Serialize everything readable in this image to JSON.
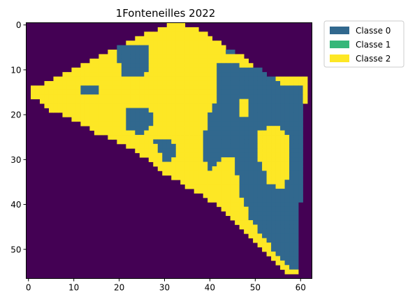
{
  "chart_data": {
    "type": "heatmap",
    "title": "1Fonteneilles 2022",
    "xlabel": "",
    "ylabel": "",
    "grid": false,
    "colorbar": false,
    "legend_position": "outside-top-right",
    "xlim": [
      -0.5,
      62.5
    ],
    "ylim": [
      56.5,
      -0.5
    ],
    "x_ticks": [
      0,
      10,
      20,
      30,
      40,
      50,
      60
    ],
    "y_ticks": [
      0,
      10,
      20,
      30,
      40,
      50
    ],
    "grid_size": {
      "cols": 63,
      "rows": 57
    },
    "background_color": "#440154",
    "legend": [
      {
        "label": "Classe 0",
        "color": "#31688e"
      },
      {
        "label": "Classe 1",
        "color": "#35b779"
      },
      {
        "label": "Classe 2",
        "color": "#fde725"
      }
    ],
    "field_boundary": [
      [
        31,
        0
      ],
      [
        35,
        0
      ],
      [
        38,
        1
      ],
      [
        41,
        3
      ],
      [
        44,
        5
      ],
      [
        46,
        6
      ],
      [
        50,
        9
      ],
      [
        53,
        11
      ],
      [
        56,
        12
      ],
      [
        62,
        12
      ],
      [
        62,
        16
      ],
      [
        61,
        18
      ],
      [
        61,
        30
      ],
      [
        60,
        40
      ],
      [
        60,
        50
      ],
      [
        59,
        56
      ],
      [
        58,
        56
      ],
      [
        56,
        54
      ],
      [
        52,
        50
      ],
      [
        48,
        46
      ],
      [
        45,
        43
      ],
      [
        40,
        39
      ],
      [
        35,
        36
      ],
      [
        30,
        33
      ],
      [
        25,
        29
      ],
      [
        20,
        26
      ],
      [
        15,
        24
      ],
      [
        10,
        21
      ],
      [
        5,
        19
      ],
      [
        1,
        16
      ],
      [
        1,
        14
      ],
      [
        4,
        13
      ],
      [
        10,
        10
      ],
      [
        14,
        8
      ],
      [
        18,
        6
      ],
      [
        22,
        4
      ],
      [
        26,
        2
      ]
    ],
    "classe0_regions": [
      [
        [
          20,
          5
        ],
        [
          24,
          4
        ],
        [
          27,
          5
        ],
        [
          27,
          10
        ],
        [
          24,
          12
        ],
        [
          21,
          11
        ],
        [
          20,
          8
        ]
      ],
      [
        [
          42,
          8
        ],
        [
          47,
          9
        ],
        [
          52,
          10
        ],
        [
          55,
          12
        ],
        [
          56,
          14
        ],
        [
          61,
          14
        ],
        [
          61,
          31
        ],
        [
          60,
          48
        ],
        [
          59,
          55
        ],
        [
          57,
          53
        ],
        [
          54,
          50
        ],
        [
          51,
          46
        ],
        [
          49,
          43
        ],
        [
          47,
          38
        ],
        [
          46,
          33
        ],
        [
          45,
          30
        ],
        [
          43,
          30
        ],
        [
          40,
          33
        ],
        [
          39,
          30
        ],
        [
          39,
          24
        ],
        [
          40,
          20
        ],
        [
          42,
          16
        ],
        [
          42,
          12
        ]
      ],
      [
        [
          22,
          19
        ],
        [
          27,
          19
        ],
        [
          28,
          22
        ],
        [
          25,
          25
        ],
        [
          22,
          23
        ]
      ],
      [
        [
          28,
          26
        ],
        [
          32,
          26
        ],
        [
          33,
          29
        ],
        [
          30,
          31
        ]
      ],
      [
        [
          12,
          14
        ],
        [
          16,
          14
        ],
        [
          16,
          16
        ],
        [
          12,
          16
        ]
      ],
      [
        [
          44,
          5
        ],
        [
          47,
          5
        ],
        [
          47,
          7
        ],
        [
          44,
          7
        ]
      ],
      [
        [
          0,
          14
        ],
        [
          1,
          14
        ],
        [
          1,
          16
        ],
        [
          0,
          16
        ]
      ]
    ],
    "classe2_regions": [
      [
        [
          51,
          24
        ],
        [
          55,
          22
        ],
        [
          58,
          25
        ],
        [
          58,
          33
        ],
        [
          56,
          37
        ],
        [
          53,
          35
        ],
        [
          51,
          30
        ]
      ],
      [
        [
          47,
          17
        ],
        [
          49,
          17
        ],
        [
          49,
          21
        ],
        [
          47,
          21
        ]
      ],
      [
        [
          44,
          30
        ],
        [
          46,
          30
        ],
        [
          46,
          33
        ],
        [
          44,
          33
        ]
      ],
      [
        [
          56,
          12
        ],
        [
          61,
          12
        ],
        [
          61,
          14
        ],
        [
          56,
          14
        ]
      ]
    ]
  }
}
